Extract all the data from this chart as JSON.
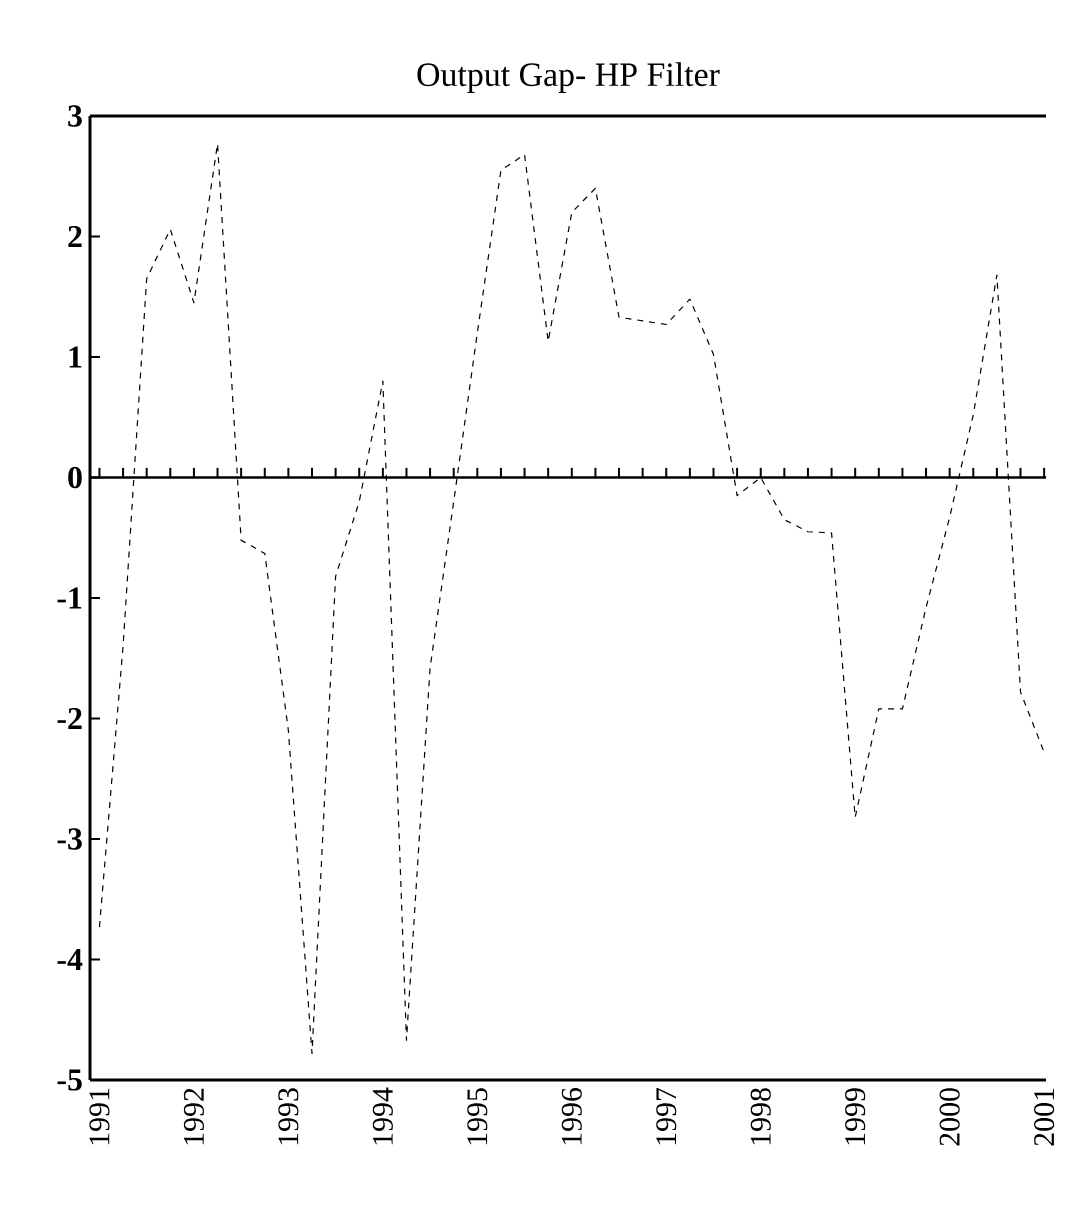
{
  "chart_data": {
    "type": "line",
    "title": "Output Gap- HP Filter",
    "x": [
      1991.0,
      1991.25,
      1991.5,
      1991.75,
      1992.0,
      1992.25,
      1992.5,
      1992.75,
      1993.0,
      1993.25,
      1993.5,
      1993.75,
      1994.0,
      1994.25,
      1994.5,
      1994.75,
      1995.0,
      1995.25,
      1995.5,
      1995.75,
      1996.0,
      1996.25,
      1996.5,
      1996.75,
      1997.0,
      1997.25,
      1997.5,
      1997.75,
      1998.0,
      1998.25,
      1998.5,
      1998.75,
      1999.0,
      1999.25,
      1999.5,
      1999.75,
      2000.0,
      2000.25,
      2000.5,
      2000.75,
      2001.0
    ],
    "series": [
      {
        "color": "#000000",
        "values": [
          -3.73,
          -1.4,
          1.65,
          2.06,
          1.45,
          2.77,
          -0.52,
          -0.63,
          -2.1,
          -4.78,
          -0.82,
          -0.2,
          0.8,
          -4.67,
          -1.58,
          -0.2,
          1.2,
          2.55,
          2.68,
          1.13,
          2.2,
          2.4,
          1.33,
          1.3,
          1.27,
          1.48,
          1.02,
          -0.15,
          0.0,
          -0.35,
          -0.45,
          -0.46,
          -2.82,
          -1.92,
          -1.92,
          -1.08,
          -0.33,
          0.52,
          1.68,
          -1.78,
          -2.28
        ]
      }
    ],
    "xlim": [
      1990.9,
      2001.02
    ],
    "ylim": [
      -5,
      3
    ],
    "xticks": [
      1991,
      1992,
      1993,
      1994,
      1995,
      1996,
      1997,
      1998,
      1999,
      2000,
      2001
    ],
    "yticks": [
      -5,
      -4,
      -3,
      -2,
      -1,
      0,
      1,
      2,
      3
    ],
    "ref_lines": [
      {
        "axis": "y",
        "value": 0
      }
    ],
    "line_style": "dashed",
    "grid": false
  }
}
